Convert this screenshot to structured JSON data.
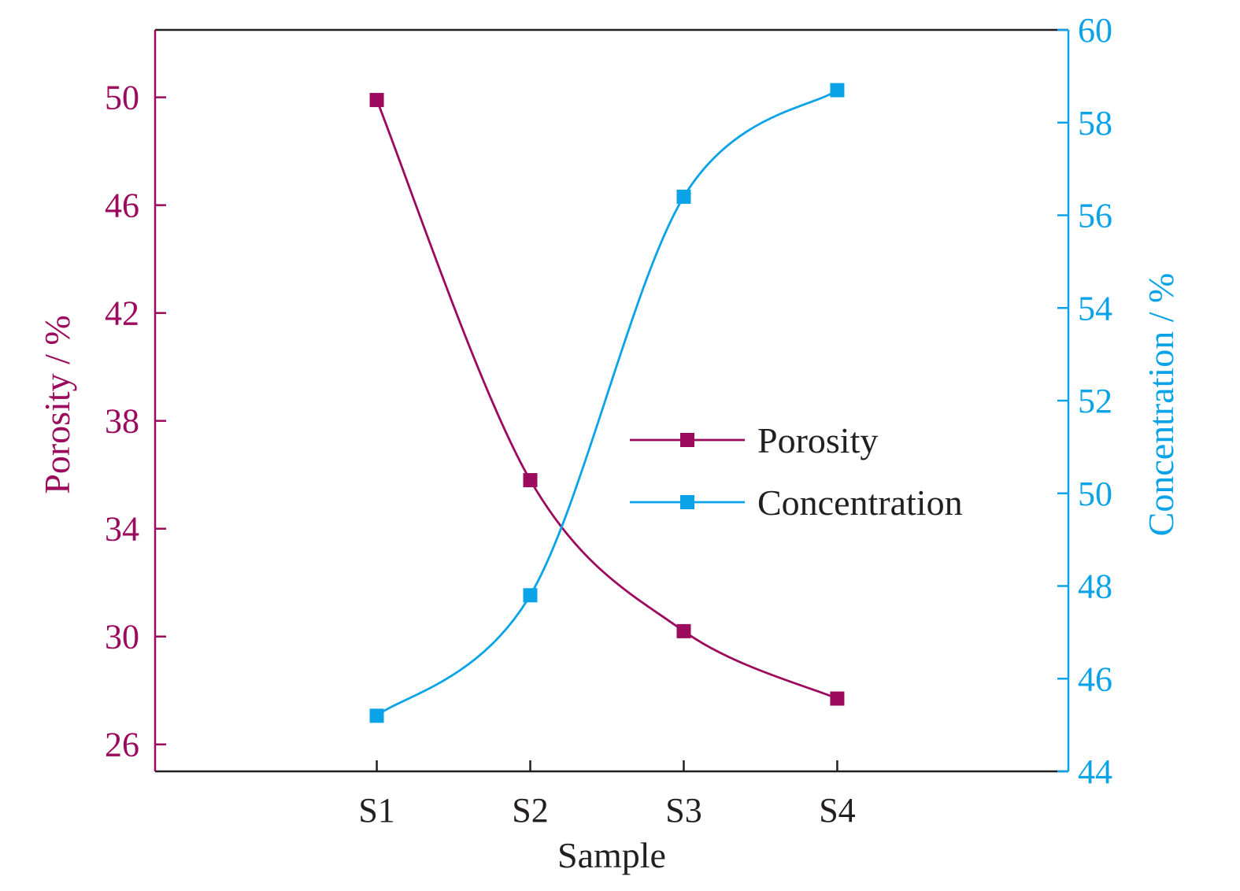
{
  "chart_data": {
    "type": "line",
    "categories": [
      "S1",
      "S2",
      "S3",
      "S4"
    ],
    "xlabel": "Sample",
    "ylabel_left": "Porosity / %",
    "ylabel_right": "Concentration / %",
    "ylim_left": [
      25,
      52.5
    ],
    "ylim_right": [
      44,
      60
    ],
    "yticks_left": [
      26,
      30,
      34,
      38,
      42,
      46,
      50
    ],
    "yticks_right": [
      44,
      46,
      48,
      50,
      52,
      54,
      56,
      58,
      60
    ],
    "grid": false,
    "legend_position": "center-right",
    "series": [
      {
        "name": "Porosity",
        "axis": "left",
        "marker": "square",
        "smooth": true,
        "color": "#9b0a5c",
        "values": [
          49.9,
          35.8,
          30.2,
          27.7
        ]
      },
      {
        "name": "Concentration",
        "axis": "right",
        "marker": "square",
        "smooth": true,
        "color": "#0aa3e8",
        "values": [
          45.2,
          47.8,
          56.4,
          58.7
        ]
      }
    ],
    "colors": {
      "axis_frame": "#231f20",
      "left_axis": "#9b0a5c",
      "right_axis": "#0aa3e8",
      "text": "#231f20"
    }
  }
}
